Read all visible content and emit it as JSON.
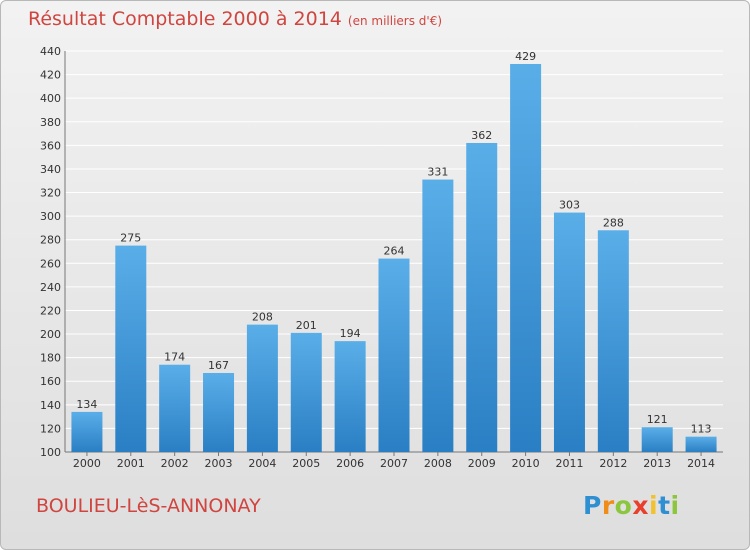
{
  "header": {
    "title": "Résultat Comptable 2000 à 2014",
    "subtitle": "(en milliers d'€)"
  },
  "footer": {
    "place": "BOULIEU-LèS-ANNONAY",
    "logo_text": "Proxiti"
  },
  "colors": {
    "title": "#d0453f",
    "bar_light": "#5aaee8",
    "bar_dark": "#2a7fc4",
    "grid": "#ffffff"
  },
  "chart_data": {
    "type": "bar",
    "title": "Résultat Comptable 2000 à 2014",
    "subtitle": "(en milliers d'€)",
    "categories": [
      "2000",
      "2001",
      "2002",
      "2003",
      "2004",
      "2005",
      "2006",
      "2007",
      "2008",
      "2009",
      "2010",
      "2011",
      "2012",
      "2013",
      "2014"
    ],
    "values": [
      134,
      275,
      174,
      167,
      208,
      201,
      194,
      264,
      331,
      362,
      429,
      303,
      288,
      121,
      113
    ],
    "ylim": [
      100,
      440
    ],
    "yticks": [
      100,
      120,
      140,
      160,
      180,
      200,
      220,
      240,
      260,
      280,
      300,
      320,
      340,
      360,
      380,
      400,
      420,
      440
    ],
    "grid": true,
    "data_labels": true
  }
}
